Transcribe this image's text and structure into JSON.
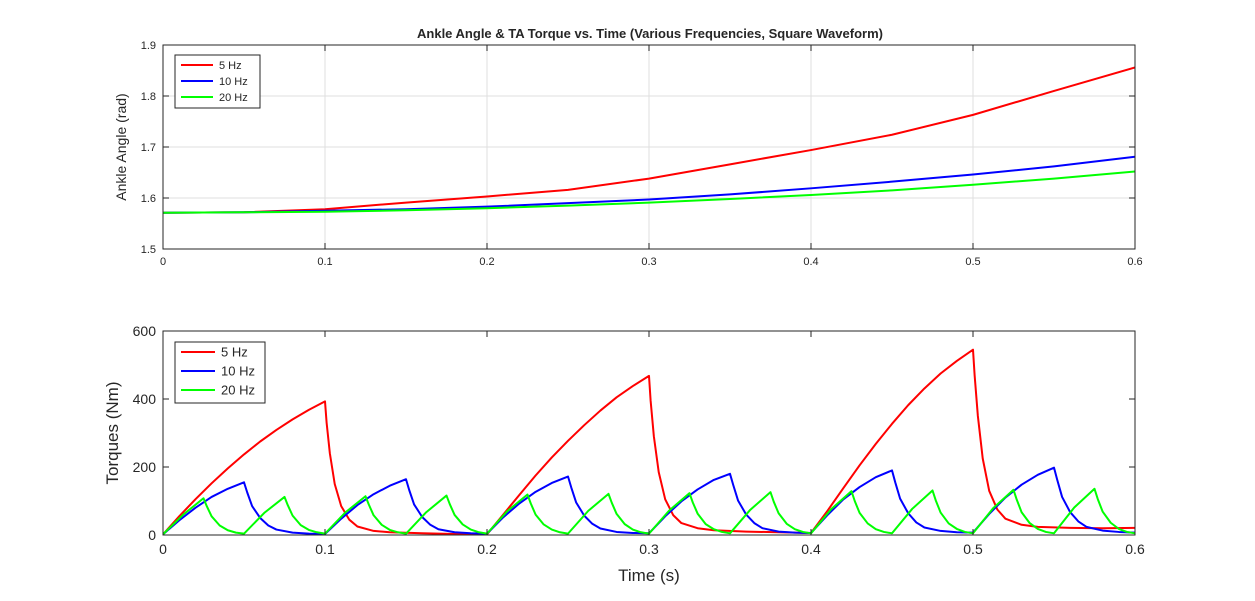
{
  "chart_data": [
    {
      "type": "line",
      "title": "Ankle Angle & TA Torque vs. Time (Various Frequencies, Square Waveform)",
      "xlabel": "",
      "ylabel": "Ankle Angle (rad)",
      "xlim": [
        0,
        0.6
      ],
      "ylim": [
        1.5,
        1.9
      ],
      "xticks": [
        0,
        0.1,
        0.2,
        0.3,
        0.4,
        0.5,
        0.6
      ],
      "xtick_labels": [
        "0",
        "0.1",
        "0.2",
        "0.3",
        "0.4",
        "0.5",
        "0.6"
      ],
      "yticks": [
        1.5,
        1.6,
        1.7,
        1.8,
        1.9
      ],
      "ytick_labels": [
        "1.5",
        "1.6",
        "1.7",
        "1.8",
        "1.9"
      ],
      "grid": true,
      "legend_position": "top-left",
      "series": [
        {
          "name": "5 Hz",
          "color": "#ff0000",
          "x": [
            0,
            0.05,
            0.1,
            0.15,
            0.2,
            0.25,
            0.3,
            0.35,
            0.4,
            0.45,
            0.5,
            0.55,
            0.6
          ],
          "y": [
            1.571,
            1.572,
            1.578,
            1.591,
            1.603,
            1.616,
            1.638,
            1.666,
            1.694,
            1.724,
            1.763,
            1.81,
            1.856
          ]
        },
        {
          "name": "10 Hz",
          "color": "#0000ff",
          "x": [
            0,
            0.05,
            0.1,
            0.15,
            0.2,
            0.25,
            0.3,
            0.35,
            0.4,
            0.45,
            0.5,
            0.55,
            0.6
          ],
          "y": [
            1.571,
            1.572,
            1.575,
            1.578,
            1.583,
            1.59,
            1.597,
            1.607,
            1.619,
            1.632,
            1.646,
            1.662,
            1.681
          ]
        },
        {
          "name": "20 Hz",
          "color": "#00ff00",
          "x": [
            0,
            0.05,
            0.1,
            0.15,
            0.2,
            0.25,
            0.3,
            0.35,
            0.4,
            0.45,
            0.5,
            0.55,
            0.6
          ],
          "y": [
            1.571,
            1.572,
            1.573,
            1.576,
            1.58,
            1.585,
            1.591,
            1.598,
            1.606,
            1.615,
            1.626,
            1.638,
            1.652
          ]
        }
      ]
    },
    {
      "type": "line",
      "title": "",
      "xlabel": "Time (s)",
      "ylabel": "Torques (Nm)",
      "xlim": [
        0,
        0.6
      ],
      "ylim": [
        0,
        600
      ],
      "xticks": [
        0,
        0.1,
        0.2,
        0.3,
        0.4,
        0.5,
        0.6
      ],
      "xtick_labels": [
        "0",
        "0.1",
        "0.2",
        "0.3",
        "0.4",
        "0.5",
        "0.6"
      ],
      "yticks": [
        0,
        200,
        400,
        600
      ],
      "ytick_labels": [
        "0",
        "200",
        "400",
        "600"
      ],
      "grid": false,
      "legend_position": "top-left",
      "series": [
        {
          "name": "5 Hz",
          "color": "#ff0000",
          "x": [
            0,
            0.01,
            0.02,
            0.03,
            0.04,
            0.05,
            0.06,
            0.07,
            0.08,
            0.09,
            0.1,
            0.101,
            0.103,
            0.106,
            0.11,
            0.115,
            0.12,
            0.13,
            0.14,
            0.16,
            0.18,
            0.2,
            0.21,
            0.22,
            0.23,
            0.24,
            0.25,
            0.26,
            0.27,
            0.28,
            0.29,
            0.3,
            0.301,
            0.303,
            0.306,
            0.31,
            0.315,
            0.32,
            0.33,
            0.34,
            0.36,
            0.38,
            0.4,
            0.41,
            0.42,
            0.43,
            0.44,
            0.45,
            0.46,
            0.47,
            0.48,
            0.49,
            0.5,
            0.501,
            0.503,
            0.506,
            0.51,
            0.515,
            0.52,
            0.53,
            0.54,
            0.56,
            0.58,
            0.6
          ],
          "y": [
            2,
            55,
            105,
            152,
            196,
            237,
            275,
            309,
            340,
            368,
            393,
            330,
            240,
            150,
            85,
            45,
            25,
            12,
            8,
            5,
            3,
            2,
            60,
            118,
            175,
            228,
            277,
            323,
            366,
            405,
            438,
            468,
            395,
            290,
            185,
            105,
            58,
            35,
            20,
            14,
            10,
            8,
            6,
            70,
            138,
            205,
            268,
            327,
            382,
            431,
            475,
            512,
            545,
            470,
            350,
            225,
            130,
            75,
            48,
            30,
            24,
            21,
            20,
            21
          ]
        },
        {
          "name": "10 Hz",
          "color": "#0000ff",
          "x": [
            0,
            0.01,
            0.02,
            0.03,
            0.04,
            0.05,
            0.052,
            0.055,
            0.06,
            0.065,
            0.07,
            0.08,
            0.09,
            0.1,
            0.11,
            0.12,
            0.13,
            0.14,
            0.15,
            0.152,
            0.155,
            0.16,
            0.165,
            0.17,
            0.18,
            0.19,
            0.2,
            0.21,
            0.22,
            0.23,
            0.24,
            0.25,
            0.252,
            0.255,
            0.26,
            0.265,
            0.27,
            0.28,
            0.29,
            0.3,
            0.31,
            0.32,
            0.33,
            0.34,
            0.35,
            0.352,
            0.355,
            0.36,
            0.365,
            0.37,
            0.38,
            0.39,
            0.4,
            0.41,
            0.42,
            0.43,
            0.44,
            0.45,
            0.452,
            0.455,
            0.46,
            0.465,
            0.47,
            0.48,
            0.49,
            0.5,
            0.51,
            0.52,
            0.53,
            0.54,
            0.55,
            0.552,
            0.555,
            0.56,
            0.565,
            0.57,
            0.58,
            0.59,
            0.6
          ],
          "y": [
            2,
            43,
            80,
            112,
            136,
            155,
            125,
            85,
            50,
            28,
            16,
            7,
            4,
            3,
            48,
            88,
            120,
            145,
            164,
            132,
            90,
            53,
            30,
            17,
            8,
            5,
            4,
            52,
            93,
            127,
            153,
            172,
            140,
            96,
            57,
            33,
            19,
            9,
            6,
            5,
            55,
            99,
            134,
            162,
            180,
            147,
            101,
            60,
            35,
            20,
            10,
            7,
            6,
            58,
            105,
            141,
            170,
            190,
            155,
            107,
            64,
            37,
            22,
            12,
            8,
            7,
            62,
            110,
            148,
            177,
            198,
            162,
            112,
            67,
            40,
            24,
            13,
            9,
            7
          ]
        },
        {
          "name": "20 Hz",
          "color": "#00ff00",
          "x": [
            0,
            0.0125,
            0.025,
            0.027,
            0.03,
            0.035,
            0.04,
            0.045,
            0.05,
            0.0625,
            0.075,
            0.077,
            0.08,
            0.085,
            0.09,
            0.095,
            0.1,
            0.1125,
            0.125,
            0.127,
            0.13,
            0.135,
            0.14,
            0.145,
            0.15,
            0.1625,
            0.175,
            0.177,
            0.18,
            0.185,
            0.19,
            0.195,
            0.2,
            0.2125,
            0.225,
            0.227,
            0.23,
            0.235,
            0.24,
            0.245,
            0.25,
            0.2625,
            0.275,
            0.277,
            0.28,
            0.285,
            0.29,
            0.295,
            0.3,
            0.3125,
            0.325,
            0.327,
            0.33,
            0.335,
            0.34,
            0.345,
            0.35,
            0.3625,
            0.375,
            0.377,
            0.38,
            0.385,
            0.39,
            0.395,
            0.4,
            0.4125,
            0.425,
            0.427,
            0.43,
            0.435,
            0.44,
            0.445,
            0.45,
            0.4625,
            0.475,
            0.477,
            0.48,
            0.485,
            0.49,
            0.495,
            0.5,
            0.5125,
            0.525,
            0.527,
            0.53,
            0.535,
            0.54,
            0.545,
            0.55,
            0.5625,
            0.575,
            0.577,
            0.58,
            0.585,
            0.59,
            0.595,
            0.6
          ],
          "y": [
            2,
            60,
            108,
            85,
            55,
            28,
            14,
            7,
            4,
            65,
            112,
            88,
            57,
            29,
            15,
            8,
            4,
            66,
            114,
            90,
            58,
            30,
            15,
            8,
            4,
            67,
            116,
            91,
            59,
            31,
            16,
            8,
            4,
            70,
            119,
            93,
            60,
            31,
            16,
            8,
            4,
            71,
            121,
            95,
            62,
            32,
            16,
            8,
            4,
            72,
            123,
            96,
            63,
            32,
            17,
            9,
            5,
            74,
            126,
            98,
            64,
            33,
            17,
            9,
            5,
            76,
            129,
            100,
            65,
            34,
            17,
            9,
            5,
            77,
            131,
            102,
            66,
            34,
            18,
            9,
            5,
            79,
            133,
            104,
            67,
            35,
            18,
            9,
            5,
            81,
            136,
            106,
            69,
            36,
            18,
            9,
            5
          ]
        }
      ]
    }
  ]
}
